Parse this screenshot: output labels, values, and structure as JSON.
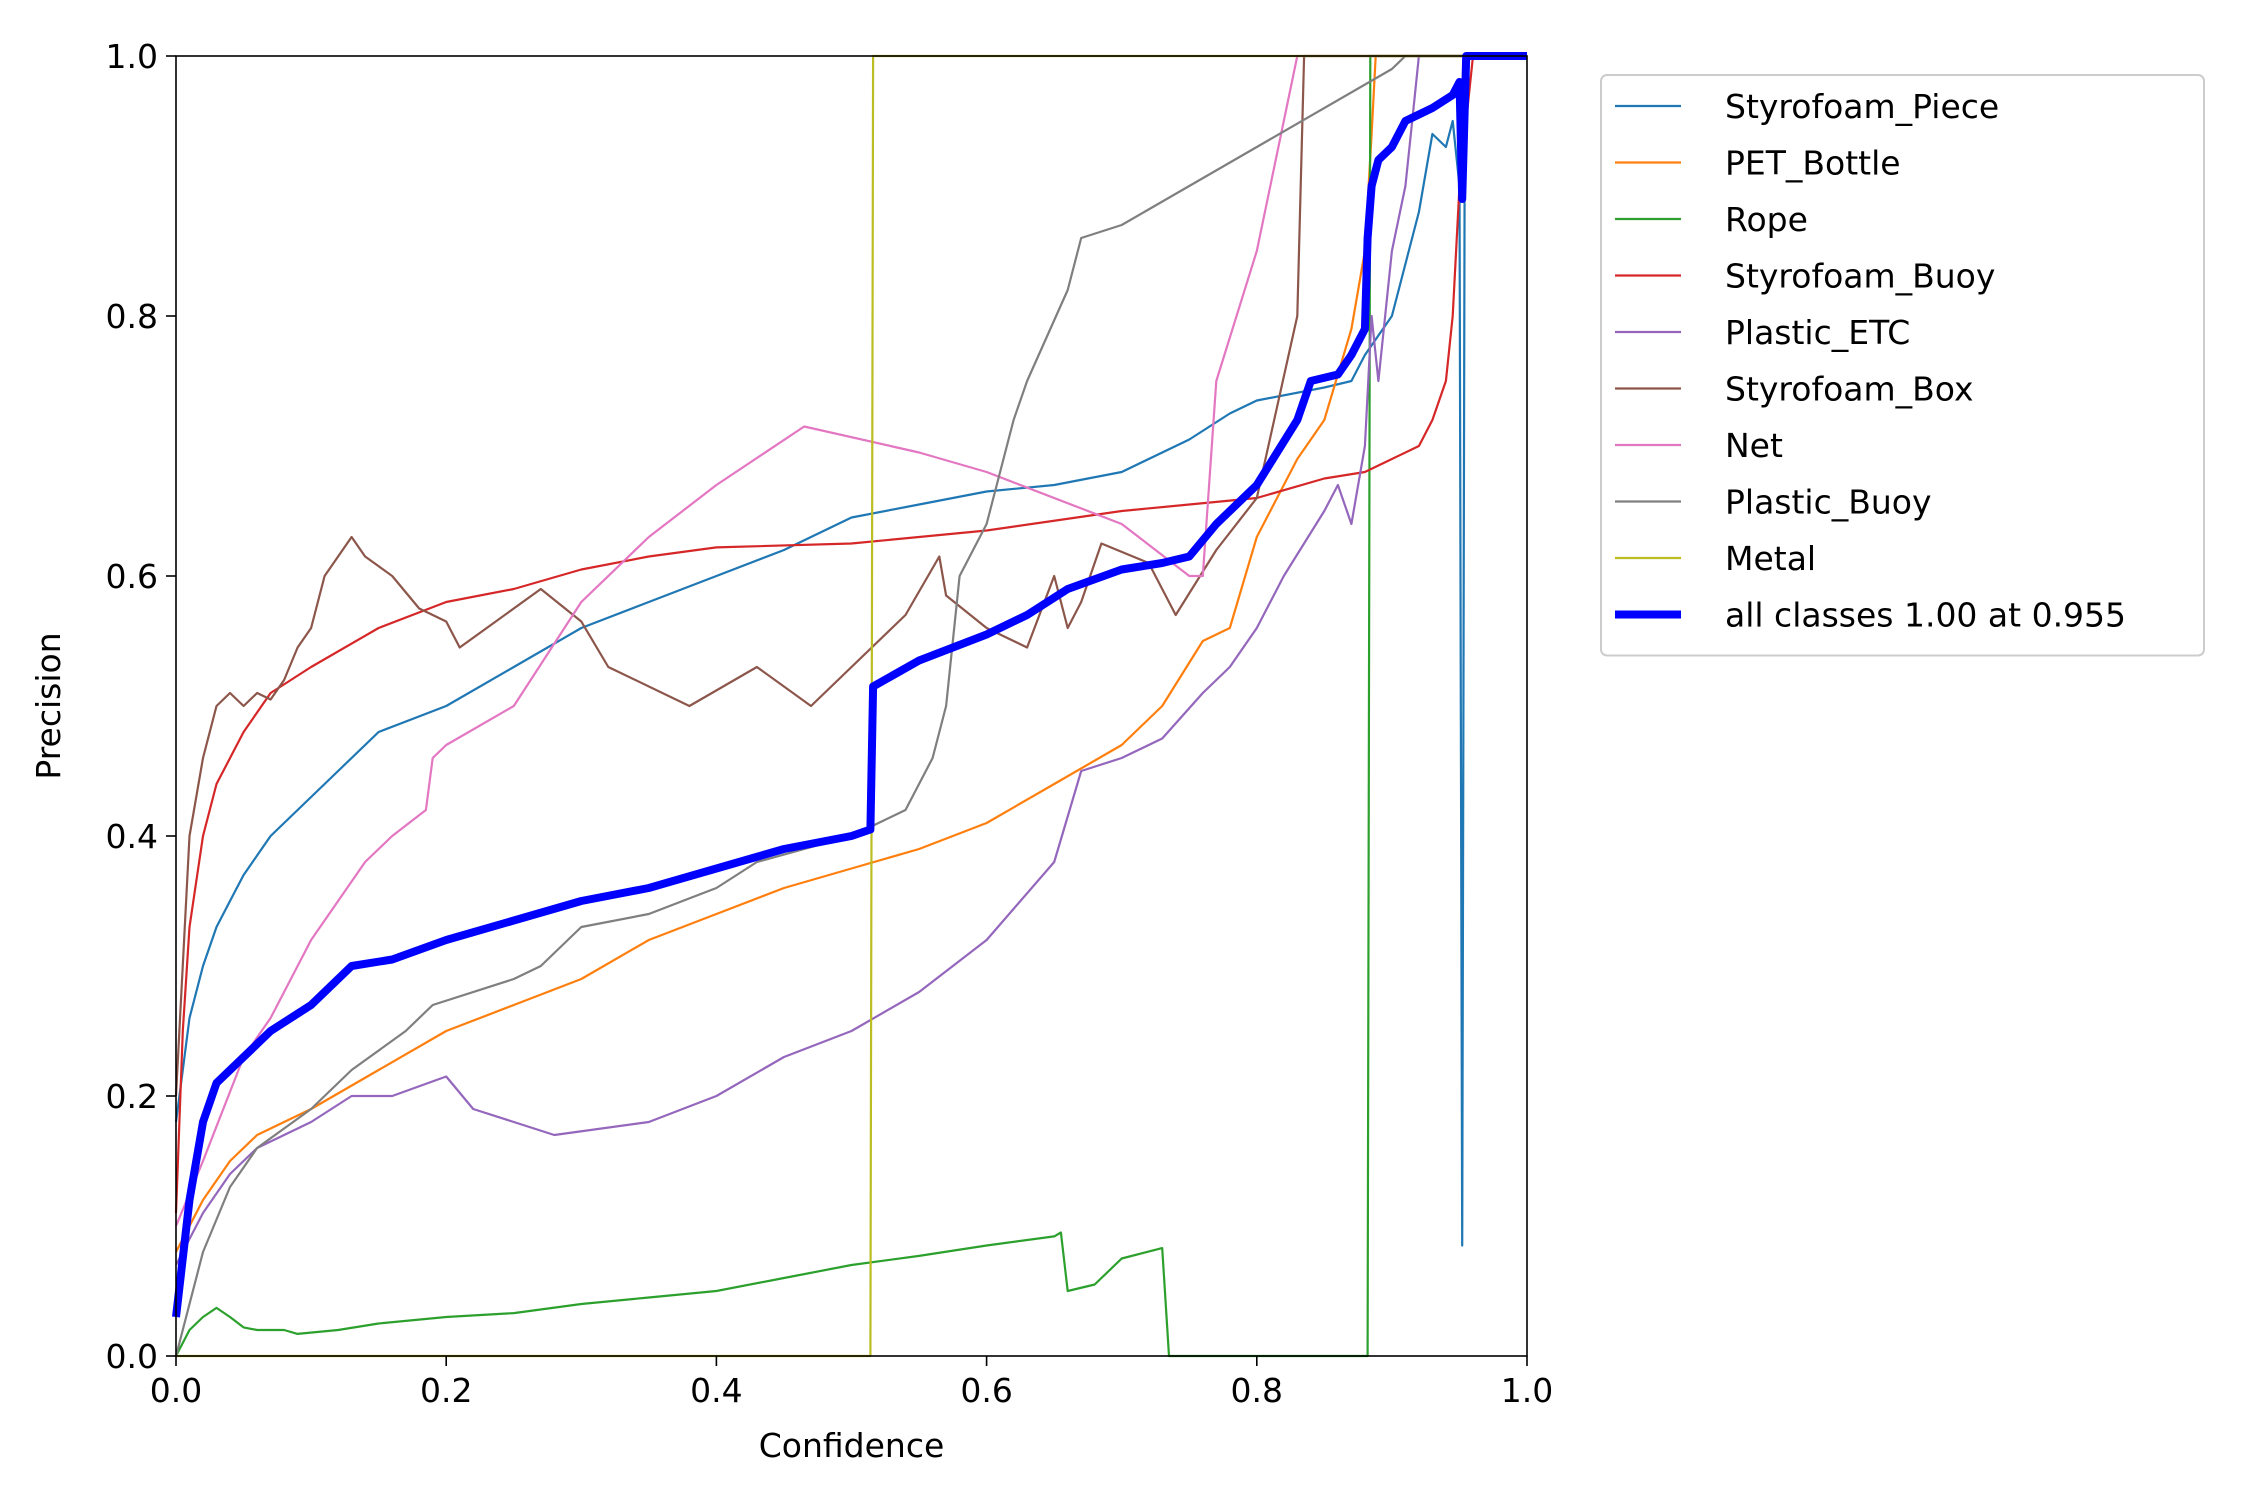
{
  "chart_data": {
    "type": "line",
    "title": "",
    "xlabel": "Confidence",
    "ylabel": "Precision",
    "xlim": [
      0,
      1
    ],
    "ylim": [
      0,
      1
    ],
    "grid": false,
    "legend_position": "outside-top-right",
    "x_ticks": [
      "0.0",
      "0.2",
      "0.4",
      "0.6",
      "0.8",
      "1.0"
    ],
    "y_ticks": [
      "0.0",
      "0.2",
      "0.4",
      "0.6",
      "0.8",
      "1.0"
    ],
    "series": [
      {
        "name": "Styrofoam_Piece",
        "color": "#1f77b4",
        "points": [
          [
            0.0,
            0.18
          ],
          [
            0.005,
            0.22
          ],
          [
            0.01,
            0.26
          ],
          [
            0.02,
            0.3
          ],
          [
            0.03,
            0.33
          ],
          [
            0.04,
            0.35
          ],
          [
            0.05,
            0.37
          ],
          [
            0.07,
            0.4
          ],
          [
            0.1,
            0.43
          ],
          [
            0.12,
            0.45
          ],
          [
            0.15,
            0.48
          ],
          [
            0.2,
            0.5
          ],
          [
            0.25,
            0.53
          ],
          [
            0.3,
            0.56
          ],
          [
            0.35,
            0.58
          ],
          [
            0.4,
            0.6
          ],
          [
            0.45,
            0.62
          ],
          [
            0.5,
            0.645
          ],
          [
            0.55,
            0.655
          ],
          [
            0.6,
            0.665
          ],
          [
            0.65,
            0.67
          ],
          [
            0.7,
            0.68
          ],
          [
            0.75,
            0.705
          ],
          [
            0.78,
            0.725
          ],
          [
            0.8,
            0.735
          ],
          [
            0.85,
            0.745
          ],
          [
            0.87,
            0.75
          ],
          [
            0.88,
            0.77
          ],
          [
            0.9,
            0.8
          ],
          [
            0.92,
            0.88
          ],
          [
            0.93,
            0.94
          ],
          [
            0.94,
            0.93
          ],
          [
            0.945,
            0.95
          ],
          [
            0.95,
            0.9
          ],
          [
            0.952,
            0.085
          ],
          [
            0.954,
            1.0
          ],
          [
            1.0,
            1.0
          ]
        ]
      },
      {
        "name": "PET_Bottle",
        "color": "#ff7f0e",
        "points": [
          [
            0.0,
            0.08
          ],
          [
            0.02,
            0.12
          ],
          [
            0.04,
            0.15
          ],
          [
            0.06,
            0.17
          ],
          [
            0.1,
            0.19
          ],
          [
            0.15,
            0.22
          ],
          [
            0.2,
            0.25
          ],
          [
            0.25,
            0.27
          ],
          [
            0.3,
            0.29
          ],
          [
            0.35,
            0.32
          ],
          [
            0.4,
            0.34
          ],
          [
            0.45,
            0.36
          ],
          [
            0.5,
            0.375
          ],
          [
            0.55,
            0.39
          ],
          [
            0.6,
            0.41
          ],
          [
            0.65,
            0.44
          ],
          [
            0.7,
            0.47
          ],
          [
            0.73,
            0.5
          ],
          [
            0.76,
            0.55
          ],
          [
            0.78,
            0.56
          ],
          [
            0.8,
            0.63
          ],
          [
            0.83,
            0.69
          ],
          [
            0.85,
            0.72
          ],
          [
            0.87,
            0.79
          ],
          [
            0.88,
            0.85
          ],
          [
            0.885,
            0.94
          ],
          [
            0.888,
            1.0
          ],
          [
            1.0,
            1.0
          ]
        ]
      },
      {
        "name": "Rope",
        "color": "#2ca02c",
        "points": [
          [
            0.0,
            0.0
          ],
          [
            0.01,
            0.02
          ],
          [
            0.02,
            0.03
          ],
          [
            0.03,
            0.037
          ],
          [
            0.04,
            0.03
          ],
          [
            0.05,
            0.022
          ],
          [
            0.06,
            0.02
          ],
          [
            0.08,
            0.02
          ],
          [
            0.09,
            0.017
          ],
          [
            0.12,
            0.02
          ],
          [
            0.15,
            0.025
          ],
          [
            0.2,
            0.03
          ],
          [
            0.25,
            0.033
          ],
          [
            0.3,
            0.04
          ],
          [
            0.35,
            0.045
          ],
          [
            0.4,
            0.05
          ],
          [
            0.45,
            0.06
          ],
          [
            0.5,
            0.07
          ],
          [
            0.55,
            0.077
          ],
          [
            0.6,
            0.085
          ],
          [
            0.65,
            0.092
          ],
          [
            0.655,
            0.095
          ],
          [
            0.66,
            0.05
          ],
          [
            0.68,
            0.055
          ],
          [
            0.7,
            0.075
          ],
          [
            0.73,
            0.083
          ],
          [
            0.735,
            0.0
          ],
          [
            0.882,
            0.0
          ],
          [
            0.884,
            1.0
          ],
          [
            1.0,
            1.0
          ]
        ]
      },
      {
        "name": "Styrofoam_Buoy",
        "color": "#d62728",
        "points": [
          [
            0.0,
            0.11
          ],
          [
            0.005,
            0.25
          ],
          [
            0.01,
            0.33
          ],
          [
            0.02,
            0.4
          ],
          [
            0.03,
            0.44
          ],
          [
            0.05,
            0.48
          ],
          [
            0.07,
            0.51
          ],
          [
            0.1,
            0.53
          ],
          [
            0.15,
            0.56
          ],
          [
            0.2,
            0.58
          ],
          [
            0.25,
            0.59
          ],
          [
            0.3,
            0.605
          ],
          [
            0.35,
            0.615
          ],
          [
            0.4,
            0.622
          ],
          [
            0.5,
            0.625
          ],
          [
            0.6,
            0.635
          ],
          [
            0.7,
            0.65
          ],
          [
            0.75,
            0.655
          ],
          [
            0.8,
            0.66
          ],
          [
            0.85,
            0.675
          ],
          [
            0.88,
            0.68
          ],
          [
            0.9,
            0.69
          ],
          [
            0.92,
            0.7
          ],
          [
            0.93,
            0.72
          ],
          [
            0.94,
            0.75
          ],
          [
            0.945,
            0.8
          ],
          [
            0.95,
            0.9
          ],
          [
            0.955,
            0.95
          ],
          [
            0.96,
            1.0
          ],
          [
            1.0,
            1.0
          ]
        ]
      },
      {
        "name": "Plastic_ETC",
        "color": "#9467bd",
        "points": [
          [
            0.0,
            0.07
          ],
          [
            0.02,
            0.11
          ],
          [
            0.04,
            0.14
          ],
          [
            0.06,
            0.16
          ],
          [
            0.08,
            0.17
          ],
          [
            0.1,
            0.18
          ],
          [
            0.13,
            0.2
          ],
          [
            0.16,
            0.2
          ],
          [
            0.2,
            0.215
          ],
          [
            0.22,
            0.19
          ],
          [
            0.25,
            0.18
          ],
          [
            0.28,
            0.17
          ],
          [
            0.35,
            0.18
          ],
          [
            0.4,
            0.2
          ],
          [
            0.45,
            0.23
          ],
          [
            0.5,
            0.25
          ],
          [
            0.55,
            0.28
          ],
          [
            0.6,
            0.32
          ],
          [
            0.65,
            0.38
          ],
          [
            0.67,
            0.45
          ],
          [
            0.7,
            0.46
          ],
          [
            0.73,
            0.475
          ],
          [
            0.76,
            0.51
          ],
          [
            0.78,
            0.53
          ],
          [
            0.8,
            0.56
          ],
          [
            0.82,
            0.6
          ],
          [
            0.85,
            0.65
          ],
          [
            0.86,
            0.67
          ],
          [
            0.87,
            0.64
          ],
          [
            0.88,
            0.7
          ],
          [
            0.885,
            0.8
          ],
          [
            0.89,
            0.75
          ],
          [
            0.9,
            0.85
          ],
          [
            0.91,
            0.9
          ],
          [
            0.915,
            0.95
          ],
          [
            0.92,
            1.0
          ],
          [
            1.0,
            1.0
          ]
        ]
      },
      {
        "name": "Styrofoam_Box",
        "color": "#8c564b",
        "points": [
          [
            0.0,
            0.2
          ],
          [
            0.01,
            0.4
          ],
          [
            0.02,
            0.46
          ],
          [
            0.03,
            0.5
          ],
          [
            0.04,
            0.51
          ],
          [
            0.05,
            0.5
          ],
          [
            0.06,
            0.51
          ],
          [
            0.07,
            0.505
          ],
          [
            0.08,
            0.52
          ],
          [
            0.09,
            0.545
          ],
          [
            0.1,
            0.56
          ],
          [
            0.11,
            0.6
          ],
          [
            0.13,
            0.63
          ],
          [
            0.14,
            0.615
          ],
          [
            0.16,
            0.6
          ],
          [
            0.18,
            0.575
          ],
          [
            0.2,
            0.565
          ],
          [
            0.21,
            0.545
          ],
          [
            0.27,
            0.59
          ],
          [
            0.3,
            0.565
          ],
          [
            0.32,
            0.53
          ],
          [
            0.38,
            0.5
          ],
          [
            0.43,
            0.53
          ],
          [
            0.47,
            0.5
          ],
          [
            0.5,
            0.53
          ],
          [
            0.54,
            0.57
          ],
          [
            0.565,
            0.615
          ],
          [
            0.57,
            0.585
          ],
          [
            0.6,
            0.56
          ],
          [
            0.63,
            0.545
          ],
          [
            0.65,
            0.6
          ],
          [
            0.66,
            0.56
          ],
          [
            0.67,
            0.58
          ],
          [
            0.685,
            0.625
          ],
          [
            0.72,
            0.61
          ],
          [
            0.74,
            0.57
          ],
          [
            0.77,
            0.62
          ],
          [
            0.8,
            0.66
          ],
          [
            0.83,
            0.8
          ],
          [
            0.835,
            1.0
          ],
          [
            1.0,
            1.0
          ]
        ]
      },
      {
        "name": "Net",
        "color": "#e377c2",
        "points": [
          [
            0.0,
            0.1
          ],
          [
            0.02,
            0.15
          ],
          [
            0.05,
            0.23
          ],
          [
            0.07,
            0.26
          ],
          [
            0.09,
            0.3
          ],
          [
            0.1,
            0.32
          ],
          [
            0.12,
            0.35
          ],
          [
            0.14,
            0.38
          ],
          [
            0.16,
            0.4
          ],
          [
            0.185,
            0.42
          ],
          [
            0.19,
            0.46
          ],
          [
            0.2,
            0.47
          ],
          [
            0.25,
            0.5
          ],
          [
            0.3,
            0.58
          ],
          [
            0.35,
            0.63
          ],
          [
            0.4,
            0.67
          ],
          [
            0.465,
            0.715
          ],
          [
            0.55,
            0.695
          ],
          [
            0.6,
            0.68
          ],
          [
            0.7,
            0.64
          ],
          [
            0.75,
            0.6
          ],
          [
            0.76,
            0.6
          ],
          [
            0.77,
            0.75
          ],
          [
            0.8,
            0.85
          ],
          [
            0.82,
            0.95
          ],
          [
            0.83,
            1.0
          ],
          [
            1.0,
            1.0
          ]
        ]
      },
      {
        "name": "Plastic_Buoy",
        "color": "#7f7f7f",
        "points": [
          [
            0.0,
            0.0
          ],
          [
            0.02,
            0.08
          ],
          [
            0.04,
            0.13
          ],
          [
            0.06,
            0.16
          ],
          [
            0.1,
            0.19
          ],
          [
            0.13,
            0.22
          ],
          [
            0.17,
            0.25
          ],
          [
            0.19,
            0.27
          ],
          [
            0.25,
            0.29
          ],
          [
            0.27,
            0.3
          ],
          [
            0.3,
            0.33
          ],
          [
            0.35,
            0.34
          ],
          [
            0.4,
            0.36
          ],
          [
            0.43,
            0.38
          ],
          [
            0.5,
            0.4
          ],
          [
            0.52,
            0.41
          ],
          [
            0.54,
            0.42
          ],
          [
            0.56,
            0.46
          ],
          [
            0.57,
            0.5
          ],
          [
            0.58,
            0.6
          ],
          [
            0.6,
            0.64
          ],
          [
            0.62,
            0.72
          ],
          [
            0.63,
            0.75
          ],
          [
            0.66,
            0.82
          ],
          [
            0.67,
            0.86
          ],
          [
            0.7,
            0.87
          ],
          [
            0.8,
            0.93
          ],
          [
            0.9,
            0.99
          ],
          [
            0.91,
            1.0
          ],
          [
            1.0,
            1.0
          ]
        ]
      },
      {
        "name": "Metal",
        "color": "#bcbd22",
        "points": [
          [
            0.0,
            0.0
          ],
          [
            0.514,
            0.0
          ],
          [
            0.516,
            1.0
          ],
          [
            1.0,
            1.0
          ]
        ]
      },
      {
        "name": "all classes 1.00 at 0.955",
        "color": "#0000ff",
        "bold": true,
        "points": [
          [
            0.0,
            0.03
          ],
          [
            0.01,
            0.12
          ],
          [
            0.02,
            0.18
          ],
          [
            0.03,
            0.21
          ],
          [
            0.05,
            0.23
          ],
          [
            0.07,
            0.25
          ],
          [
            0.1,
            0.27
          ],
          [
            0.13,
            0.3
          ],
          [
            0.16,
            0.305
          ],
          [
            0.2,
            0.32
          ],
          [
            0.25,
            0.335
          ],
          [
            0.3,
            0.35
          ],
          [
            0.35,
            0.36
          ],
          [
            0.4,
            0.375
          ],
          [
            0.45,
            0.39
          ],
          [
            0.5,
            0.4
          ],
          [
            0.514,
            0.405
          ],
          [
            0.516,
            0.515
          ],
          [
            0.55,
            0.535
          ],
          [
            0.6,
            0.555
          ],
          [
            0.63,
            0.57
          ],
          [
            0.66,
            0.59
          ],
          [
            0.7,
            0.605
          ],
          [
            0.73,
            0.61
          ],
          [
            0.75,
            0.615
          ],
          [
            0.77,
            0.64
          ],
          [
            0.8,
            0.67
          ],
          [
            0.83,
            0.72
          ],
          [
            0.84,
            0.75
          ],
          [
            0.86,
            0.755
          ],
          [
            0.87,
            0.77
          ],
          [
            0.88,
            0.79
          ],
          [
            0.882,
            0.86
          ],
          [
            0.885,
            0.9
          ],
          [
            0.89,
            0.92
          ],
          [
            0.9,
            0.93
          ],
          [
            0.91,
            0.95
          ],
          [
            0.93,
            0.96
          ],
          [
            0.945,
            0.97
          ],
          [
            0.95,
            0.98
          ],
          [
            0.952,
            0.89
          ],
          [
            0.955,
            1.0
          ],
          [
            1.0,
            1.0
          ]
        ]
      }
    ]
  }
}
